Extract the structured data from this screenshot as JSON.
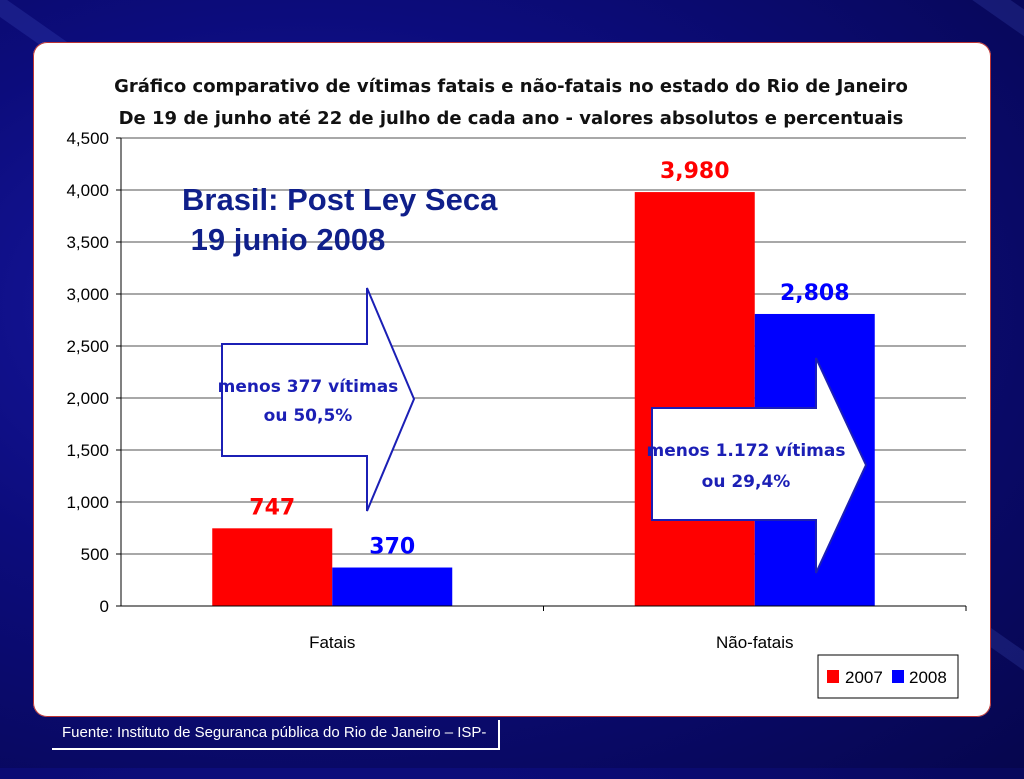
{
  "chart_data": {
    "type": "bar",
    "title": "Gráfico comparativo de vítimas fatais e não-fatais no estado do Rio de Janeiro",
    "subtitle": "De 19 de junho até 22 de julho de cada ano - valores absolutos e percentuais",
    "categories": [
      "Fatais",
      "Não-fatais"
    ],
    "series": [
      {
        "name": "2007",
        "color": "#ff0000",
        "values": [
          747,
          3980
        ],
        "labels": [
          "747",
          "3,980"
        ]
      },
      {
        "name": "2008",
        "color": "#0000ff",
        "values": [
          370,
          2808
        ],
        "labels": [
          "370",
          "2,808"
        ]
      }
    ],
    "ylim": [
      0,
      4500
    ],
    "yticks": [
      {
        "value": 0,
        "label": "0"
      },
      {
        "value": 500,
        "label": "500"
      },
      {
        "value": 1000,
        "label": "1,000"
      },
      {
        "value": 1500,
        "label": "1,500"
      },
      {
        "value": 2000,
        "label": "2,000"
      },
      {
        "value": 2500,
        "label": "2,500"
      },
      {
        "value": 3000,
        "label": "3,000"
      },
      {
        "value": 3500,
        "label": "3,500"
      },
      {
        "value": 4000,
        "label": "4,000"
      },
      {
        "value": 4500,
        "label": "4,500"
      }
    ],
    "grid": true,
    "legend_position": "bottom-right",
    "annotations": {
      "overlay_line1": "Brasil: Post Ley Seca",
      "overlay_line2": " 19 junio 2008",
      "arrow_fatais_line1": "menos 377 vítimas",
      "arrow_fatais_line2": "ou 50,5%",
      "arrow_naofatais_line1": "menos 1.172 vítimas",
      "arrow_naofatais_line2": "ou 29,4%"
    }
  },
  "footer": {
    "source": "Fuente: Instituto de Seguranca pública do Rio de Janeiro – ISP-"
  }
}
